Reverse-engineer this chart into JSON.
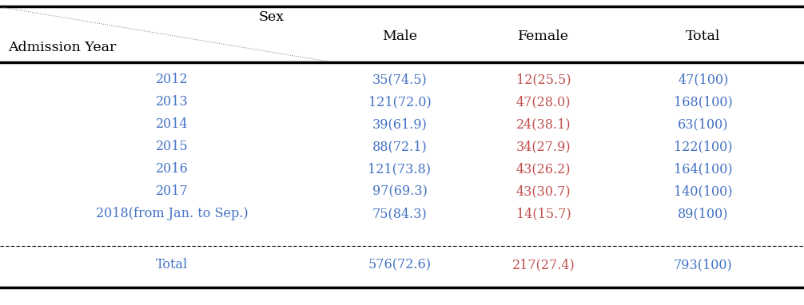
{
  "header_col": "Admission Year",
  "header_row": "Sex",
  "columns": [
    "Male",
    "Female",
    "Total"
  ],
  "rows": [
    {
      "label": "2012",
      "male": "35(74.5)",
      "female": "12(25.5)",
      "total": "47(100)"
    },
    {
      "label": "2013",
      "male": "121(72.0)",
      "female": "47(28.0)",
      "total": "168(100)"
    },
    {
      "label": "2014",
      "male": "39(61.9)",
      "female": "24(38.1)",
      "total": "63(100)"
    },
    {
      "label": "2015",
      "male": "88(72.1)",
      "female": "34(27.9)",
      "total": "122(100)"
    },
    {
      "label": "2016",
      "male": "121(73.8)",
      "female": "43(26.2)",
      "total": "164(100)"
    },
    {
      "label": "2017",
      "male": "97(69.3)",
      "female": "43(30.7)",
      "total": "140(100)"
    },
    {
      "label": "2018(from Jan. to Sep.)",
      "male": "75(84.3)",
      "female": "14(15.7)",
      "total": "89(100)"
    }
  ],
  "total_row": {
    "label": "Total",
    "male": "576(72.6)",
    "female": "217(27.4)",
    "total": "793(100)"
  },
  "col_male_color": "#4472c4",
  "col_female_color": "#c0504d",
  "col_total_color": "#4472c4",
  "row_label_color": "#4472c4",
  "total_label_color": "#4472c4",
  "bg_color": "#ffffff",
  "font_size": 11.5,
  "header_font_size": 12.5
}
